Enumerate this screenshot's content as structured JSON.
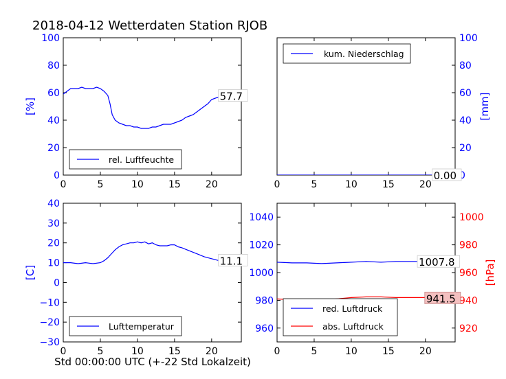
{
  "title": "2018-04-12 Wetterdaten Station RJOB",
  "xlabel": "Std 00:00:00 UTC (+-22 Std Lokalzeit)",
  "colors": {
    "blue": "#0000ff",
    "red": "#ff0000",
    "black": "#000000"
  },
  "chart_data": [
    {
      "id": "humidity",
      "type": "line",
      "xlim": [
        0,
        24
      ],
      "ylim": [
        0,
        100
      ],
      "xticks": [
        0,
        5,
        10,
        15,
        20
      ],
      "yticks": [
        0,
        20,
        40,
        60,
        80,
        100
      ],
      "ylabel": "[%]",
      "ylabel_side": "left",
      "ylabel_color": "#0000ff",
      "legend_position": "lower-left",
      "series": [
        {
          "name": "rel. Luftfeuchte",
          "color": "#0000ff",
          "x": [
            0,
            0.5,
            1,
            1.5,
            2,
            2.5,
            3,
            3.5,
            4,
            4.5,
            5,
            5.5,
            6,
            6.3,
            6.6,
            7,
            7.5,
            8,
            8.5,
            9,
            9.5,
            10,
            10.5,
            11,
            11.5,
            12,
            12.5,
            13,
            13.5,
            14,
            14.5,
            15,
            15.5,
            16,
            16.5,
            17,
            17.5,
            18,
            18.5,
            19,
            19.5,
            20,
            20.5,
            21,
            21.5,
            22,
            22.5,
            23,
            23.5,
            24
          ],
          "y": [
            59,
            61,
            63,
            63,
            63,
            64,
            63,
            63,
            63,
            64,
            63,
            61,
            58,
            52,
            44,
            40,
            38,
            37,
            36,
            36,
            35,
            35,
            34,
            34,
            34,
            35,
            35,
            36,
            37,
            37,
            37,
            38,
            39,
            40,
            42,
            43,
            44,
            46,
            48,
            50,
            52,
            55,
            56,
            57,
            57,
            58,
            54,
            56,
            57,
            57.7
          ]
        }
      ],
      "annotations": [
        {
          "text": "57.7",
          "x": 21,
          "y": 57.7
        }
      ]
    },
    {
      "id": "precipitation",
      "type": "line",
      "xlim": [
        0,
        24
      ],
      "ylim": [
        0,
        100
      ],
      "xticks": [
        0,
        5,
        10,
        15,
        20
      ],
      "yticks": [
        0,
        20,
        40,
        60,
        80,
        100
      ],
      "ylabel": "[mm]",
      "ylabel_side": "right",
      "ylabel_color": "#0000ff",
      "legend_position": "upper-left",
      "series": [
        {
          "name": "kum. Niederschlag",
          "color": "#0000ff",
          "x": [
            0,
            24
          ],
          "y": [
            0,
            0
          ]
        }
      ],
      "annotations": [
        {
          "text": "0.00",
          "x": 21,
          "y": 0
        }
      ]
    },
    {
      "id": "temperature",
      "type": "line",
      "xlim": [
        0,
        24
      ],
      "ylim": [
        -30,
        40
      ],
      "xticks": [
        0,
        5,
        10,
        15,
        20
      ],
      "yticks": [
        -30,
        -20,
        -10,
        0,
        10,
        20,
        30,
        40
      ],
      "ylabel": "[C]",
      "ylabel_side": "left",
      "ylabel_color": "#0000ff",
      "legend_position": "lower-left",
      "series": [
        {
          "name": "Lufttemperatur",
          "color": "#0000ff",
          "x": [
            0,
            1,
            2,
            3,
            4,
            5,
            5.5,
            6,
            6.5,
            7,
            7.5,
            8,
            8.5,
            9,
            9.5,
            10,
            10.5,
            11,
            11.5,
            12,
            12.5,
            13,
            13.5,
            14,
            14.5,
            15,
            15.5,
            16,
            17,
            18,
            19,
            20,
            20.5,
            21,
            22,
            23,
            24
          ],
          "y": [
            10,
            10,
            9.5,
            10,
            9.5,
            10,
            11,
            12.5,
            14.5,
            16.5,
            18,
            19,
            19.5,
            20,
            20,
            20.5,
            20,
            20.5,
            19.5,
            20,
            19,
            18.5,
            18.5,
            18.5,
            19,
            19,
            18,
            17.5,
            16,
            14.5,
            13,
            12,
            11.5,
            11,
            11,
            11,
            11.1
          ]
        }
      ],
      "annotations": [
        {
          "text": "11.1",
          "x": 21,
          "y": 11.1
        }
      ]
    },
    {
      "id": "pressure",
      "type": "line",
      "xlim": [
        0,
        24
      ],
      "ylim": [
        950,
        1050
      ],
      "xticks": [
        0,
        5,
        10,
        15,
        20
      ],
      "yticks": [
        960,
        980,
        1000,
        1020,
        1040
      ],
      "ylim_right": [
        910,
        1010
      ],
      "yticks_right": [
        920,
        940,
        960,
        980,
        1000
      ],
      "ylabel_right": "[hPa]",
      "ylabel_right_color": "#ff0000",
      "legend_position": "lower-left",
      "series": [
        {
          "name": "red. Luftdruck",
          "color": "#0000ff",
          "axis": "left",
          "x": [
            0,
            2,
            4,
            6,
            8,
            10,
            12,
            14,
            16,
            18,
            20,
            22,
            24
          ],
          "y": [
            1007.5,
            1007,
            1007,
            1006.5,
            1007,
            1007.5,
            1008,
            1007.5,
            1008,
            1008,
            1008,
            1007.8,
            1007.8
          ]
        },
        {
          "name": "abs. Luftdruck",
          "color": "#ff0000",
          "axis": "right",
          "x": [
            0,
            2,
            4,
            6,
            8,
            10,
            12,
            14,
            16,
            18,
            20,
            22,
            24
          ],
          "y": [
            941,
            940.5,
            940.5,
            940,
            941,
            942,
            942.5,
            942.5,
            942,
            942,
            942,
            941.5,
            941.5
          ]
        }
      ],
      "annotations": [
        {
          "text": "1007.8",
          "x": 19,
          "y": 1007.8,
          "axis": "left"
        },
        {
          "text": "941.5",
          "x": 20,
          "y": 941.5,
          "axis": "right",
          "background": "#f4c0c0"
        }
      ]
    }
  ]
}
